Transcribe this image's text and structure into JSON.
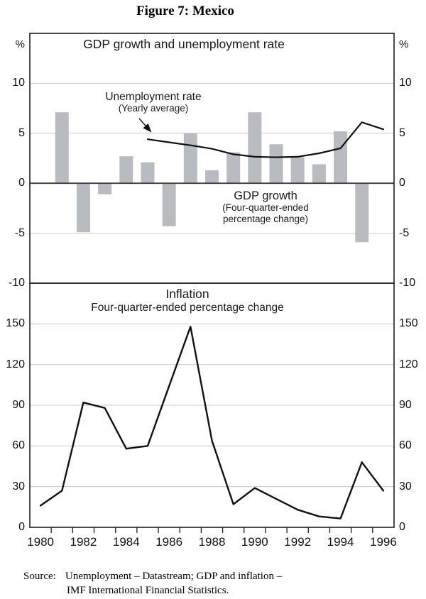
{
  "figure": {
    "title": "Figure 7: Mexico"
  },
  "colors": {
    "bar": "#b8bbbf",
    "grid": "#c9c9c9",
    "border": "#1f1f1f",
    "zero_line": "#3d3d3d",
    "series_line": "#111111",
    "text": "#111111"
  },
  "axes": {
    "unit": "%"
  },
  "x_axis": {
    "min": 1980,
    "max": 1997,
    "boundary_tick_years": [
      1981,
      1982,
      1983,
      1984,
      1985,
      1986,
      1987,
      1988,
      1989,
      1990,
      1991,
      1992,
      1993,
      1994,
      1995,
      1996
    ],
    "label_years": [
      "1980",
      "1982",
      "1984",
      "1986",
      "1988",
      "1990",
      "1992",
      "1994",
      "1996"
    ]
  },
  "chart_data": [
    {
      "type": "bar",
      "panel": "top",
      "title": "GDP growth and unemployment rate",
      "ylim": [
        -10,
        15
      ],
      "yticks": [
        "10",
        "5",
        "0",
        "-5",
        "-10"
      ],
      "ytick_values": [
        10,
        5,
        0,
        -5,
        -10
      ],
      "grid": true,
      "series": [
        {
          "name": "GDP growth",
          "type": "bar",
          "label_lines": [
            "GDP growth",
            "(Four-quarter-ended",
            "percentage change)"
          ],
          "years": [
            1981,
            1982,
            1983,
            1984,
            1985,
            1986,
            1987,
            1988,
            1989,
            1990,
            1991,
            1992,
            1993,
            1994,
            1995
          ],
          "values": [
            7.1,
            -4.9,
            -1.1,
            2.7,
            2.1,
            -4.3,
            5.0,
            1.3,
            3.1,
            7.1,
            3.9,
            2.6,
            1.9,
            5.2,
            -5.9
          ]
        },
        {
          "name": "Unemployment rate",
          "type": "line",
          "label_lines": [
            "Unemployment rate",
            "(Yearly average)"
          ],
          "years": [
            1985,
            1986,
            1987,
            1988,
            1989,
            1990,
            1991,
            1992,
            1993,
            1994,
            1995,
            1996
          ],
          "values": [
            4.4,
            4.1,
            3.8,
            3.45,
            2.9,
            2.65,
            2.6,
            2.65,
            3.0,
            3.5,
            6.1,
            5.4
          ]
        }
      ]
    },
    {
      "type": "line",
      "panel": "bottom",
      "title": "Inflation",
      "subtitle": "Four-quarter-ended percentage change",
      "ylim": [
        0,
        180
      ],
      "yticks": [
        "150",
        "120",
        "90",
        "60",
        "30",
        "0"
      ],
      "ytick_values": [
        150,
        120,
        90,
        60,
        30,
        0
      ],
      "grid": true,
      "series": [
        {
          "name": "Inflation",
          "type": "line",
          "years": [
            1980,
            1981,
            1982,
            1983,
            1984,
            1985,
            1986,
            1987,
            1988,
            1989,
            1990,
            1991,
            1992,
            1993,
            1994,
            1995,
            1996
          ],
          "values": [
            16,
            27,
            92,
            88,
            58,
            60,
            104,
            148,
            64,
            17,
            29,
            21,
            13,
            8,
            6.5,
            48,
            27
          ]
        }
      ]
    }
  ],
  "source_note": {
    "label": "Source:",
    "line1": "Unemployment – Datastream; GDP and inflation –",
    "line2": "IMF International Financial Statistics."
  }
}
